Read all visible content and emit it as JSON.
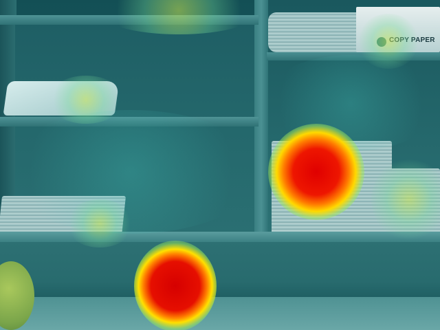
{
  "scene": {
    "description_visible_text": {
      "paper_label": "COPY PAPER"
    }
  },
  "heatmap": {
    "colors": {
      "hot_center": "#e00000",
      "hot_ring": "#ff7b00",
      "warm_ring": "#ffd900",
      "cool_overlay": "#1a5e62"
    }
  }
}
